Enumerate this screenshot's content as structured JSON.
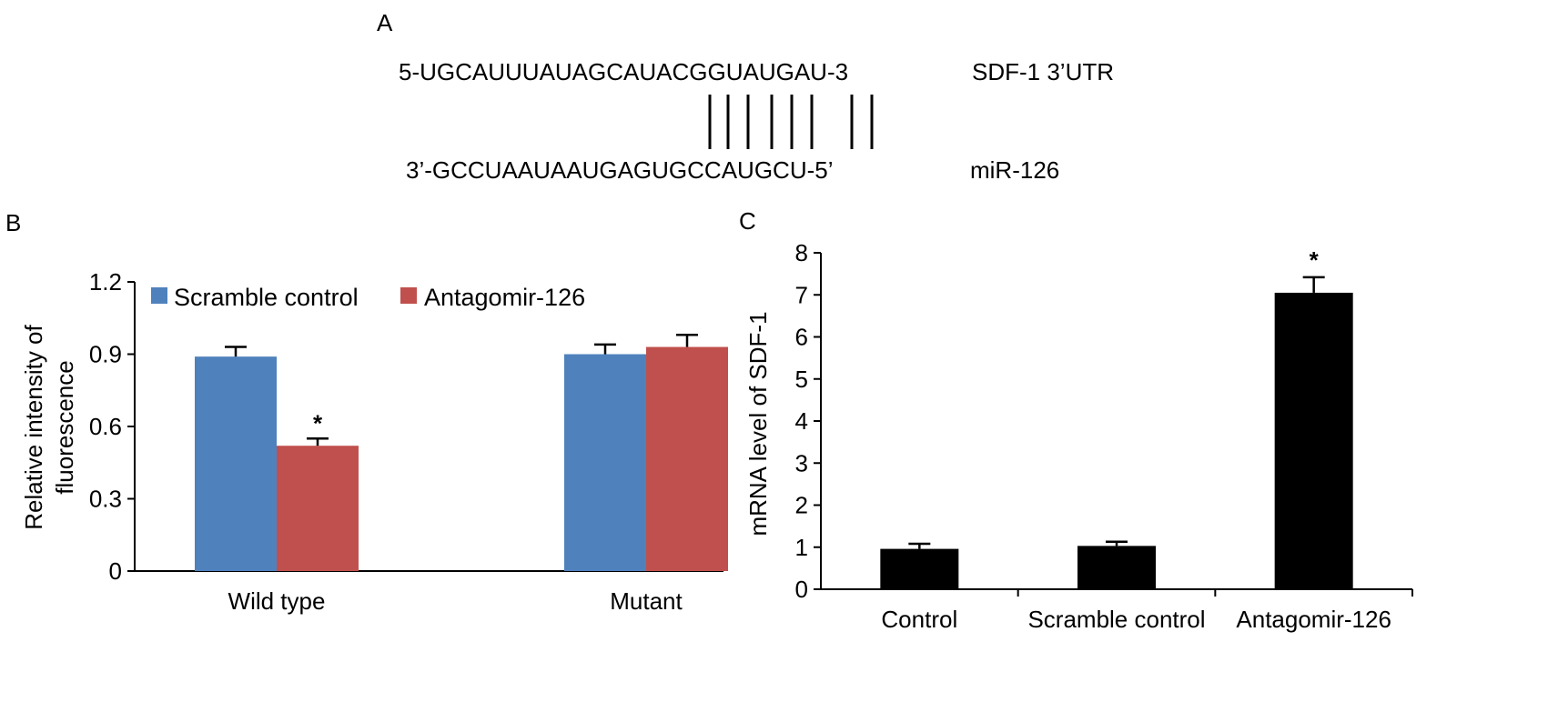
{
  "panel_a": {
    "label": "A",
    "top_sequence": "5-UGCAUUUAUAGCAUACGGUAUGAU-3",
    "top_name": "SDF-1 3’UTR",
    "bottom_sequence": "3’-GCCUAAUAAUGAGUGCCAUGCU-5’",
    "bottom_name": "miR-126"
  },
  "colors": {
    "scramble_control": "#4f81bd",
    "antagomir_126": "#c0504d",
    "panel_c_bars": "#000000",
    "axis": "#000000"
  },
  "chart_data": [
    {
      "panel": "B",
      "type": "bar",
      "categories": [
        "Wild type",
        "Mutant"
      ],
      "series": [
        {
          "name": "Scramble control",
          "values": [
            0.89,
            0.9
          ],
          "errors": [
            0.04,
            0.04
          ]
        },
        {
          "name": "Antagomir-126",
          "values": [
            0.52,
            0.93
          ],
          "errors": [
            0.03,
            0.05
          ]
        }
      ],
      "annotations": [
        {
          "category": "Wild type",
          "series": "Antagomir-126",
          "text": "*"
        }
      ],
      "ylabel_lines": [
        "Relative intensity of",
        "fluorescence"
      ],
      "ylim": [
        0,
        1.2
      ],
      "yticks": [
        0,
        0.3,
        0.6,
        0.9,
        1.2
      ],
      "ytick_labels": [
        "0",
        "0.3",
        "0.6",
        "0.9",
        "1.2"
      ],
      "legend_position": "top-left",
      "grid": false
    },
    {
      "panel": "C",
      "type": "bar",
      "categories": [
        "Control",
        "Scramble control",
        "Antagomir-126"
      ],
      "values": [
        0.96,
        1.03,
        7.05
      ],
      "errors": [
        0.12,
        0.1,
        0.37
      ],
      "annotations": [
        {
          "category": "Antagomir-126",
          "text": "*"
        }
      ],
      "ylabel": "mRNA level of SDF-1",
      "ylim": [
        0,
        8
      ],
      "yticks": [
        0,
        1,
        2,
        3,
        4,
        5,
        6,
        7,
        8
      ],
      "ytick_labels": [
        "0",
        "1",
        "2",
        "3",
        "4",
        "5",
        "6",
        "7",
        "8"
      ],
      "grid": false
    }
  ]
}
